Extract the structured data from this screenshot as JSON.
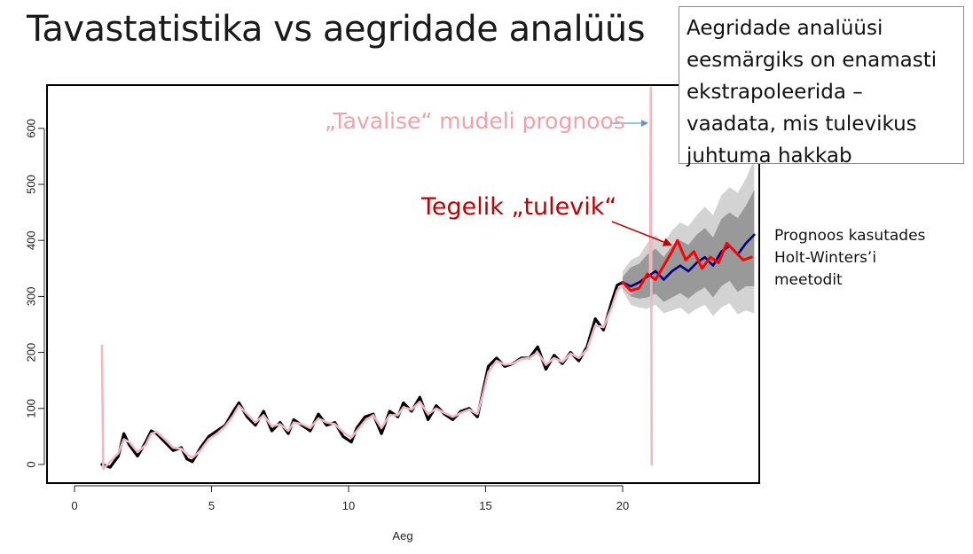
{
  "slide": {
    "title": "Tavastatistika vs aegridade analüüs",
    "callout_lines": [
      "Aegridade analüüsi",
      "eesmärgiks on enamasti",
      "ekstrapoleerida –",
      "vaadata, mis tulevikus",
      "juhtuma hakkab"
    ],
    "prediction_label": "„Tavalise“ mudeli prognoos",
    "real_future_label": "Tegelik „tulevik“",
    "hw_label_lines": [
      "Prognoos kasutades",
      "Holt-Winters’i",
      "meetodit"
    ]
  },
  "colors": {
    "observed": "#000000",
    "fitted": "#f4b6c2",
    "actual_future": "#ff0000",
    "forecast": "#000080",
    "band_outer": "#d3d3d3",
    "band_inner": "#999999",
    "real_label": "#c00000",
    "prediction_label": "#f4a0aa",
    "arrow": "#5b9bd5"
  },
  "chart_data": {
    "type": "line",
    "xlabel": "Aeg",
    "ylabel": "",
    "xlim": [
      -1,
      24.8
    ],
    "ylim": [
      -30,
      680
    ],
    "x_ticks": [
      0,
      5,
      10,
      15,
      20
    ],
    "y_ticks": [
      0,
      100,
      200,
      300,
      400,
      500,
      600
    ],
    "series": [
      {
        "key": "observed",
        "x": [
          1.0,
          1.3,
          1.6,
          1.8,
          2.0,
          2.3,
          2.6,
          2.8,
          3.0,
          3.3,
          3.6,
          3.9,
          4.1,
          4.3,
          4.6,
          4.9,
          5.2,
          5.5,
          5.8,
          6.0,
          6.3,
          6.6,
          6.9,
          7.2,
          7.5,
          7.8,
          8.0,
          8.3,
          8.6,
          8.9,
          9.2,
          9.5,
          9.8,
          10.1,
          10.3,
          10.6,
          10.9,
          11.2,
          11.5,
          11.8,
          12.0,
          12.3,
          12.6,
          12.9,
          13.2,
          13.5,
          13.8,
          14.1,
          14.4,
          14.7,
          14.9,
          15.1,
          15.4,
          15.7,
          16.0,
          16.3,
          16.6,
          16.9,
          17.2,
          17.5,
          17.8,
          18.1,
          18.4,
          18.7,
          19.0,
          19.3,
          19.6,
          19.8,
          20.0
        ],
        "y": [
          0,
          -5,
          15,
          55,
          35,
          15,
          40,
          60,
          55,
          40,
          25,
          30,
          10,
          5,
          30,
          50,
          60,
          70,
          95,
          110,
          85,
          70,
          95,
          60,
          75,
          55,
          80,
          70,
          60,
          90,
          70,
          75,
          50,
          40,
          65,
          85,
          90,
          55,
          95,
          85,
          110,
          95,
          120,
          80,
          105,
          90,
          80,
          95,
          100,
          85,
          130,
          175,
          190,
          175,
          180,
          190,
          190,
          210,
          170,
          195,
          180,
          200,
          185,
          210,
          260,
          240,
          290,
          320,
          325
        ]
      },
      {
        "key": "fitted",
        "x": [
          1.0,
          1.05,
          1.3,
          1.6,
          1.8,
          2.0,
          2.3,
          2.6,
          2.8,
          3.0,
          3.3,
          3.6,
          3.9,
          4.1,
          4.3,
          4.6,
          4.9,
          5.2,
          5.5,
          5.8,
          6.0,
          6.3,
          6.6,
          6.9,
          7.2,
          7.5,
          7.8,
          8.0,
          8.3,
          8.6,
          8.9,
          9.2,
          9.5,
          9.8,
          10.1,
          10.3,
          10.6,
          10.9,
          11.2,
          11.5,
          11.8,
          12.0,
          12.3,
          12.6,
          12.9,
          13.2,
          13.5,
          13.8,
          14.1,
          14.4,
          14.7,
          14.9,
          15.1,
          15.4,
          15.7,
          16.0,
          16.3,
          16.6,
          16.9,
          17.2,
          17.5,
          17.8,
          18.1,
          18.4,
          18.7,
          19.0,
          19.3,
          19.6,
          19.8,
          20.0,
          20.3,
          20.5,
          20.7,
          20.9,
          21.0,
          21.03,
          21.06
        ],
        "y": [
          212,
          -8,
          5,
          20,
          45,
          40,
          22,
          35,
          55,
          58,
          45,
          30,
          28,
          18,
          12,
          25,
          45,
          55,
          68,
          88,
          105,
          90,
          75,
          88,
          68,
          72,
          60,
          75,
          72,
          65,
          82,
          75,
          72,
          58,
          48,
          60,
          78,
          88,
          65,
          88,
          88,
          102,
          98,
          112,
          90,
          100,
          92,
          85,
          92,
          98,
          90,
          125,
          165,
          185,
          178,
          180,
          188,
          190,
          200,
          178,
          190,
          183,
          198,
          190,
          205,
          248,
          245,
          280,
          310,
          320,
          305,
          312,
          325,
          335,
          335,
          672,
          0
        ]
      },
      {
        "key": "actual_future",
        "x": [
          20.0,
          20.3,
          20.6,
          20.9,
          21.2,
          21.5,
          21.8,
          22.0,
          22.3,
          22.6,
          22.9,
          23.2,
          23.5,
          23.8,
          24.1,
          24.4,
          24.7
        ],
        "y": [
          325,
          310,
          315,
          340,
          330,
          355,
          380,
          400,
          365,
          380,
          350,
          370,
          360,
          395,
          380,
          365,
          370
        ]
      },
      {
        "key": "forecast",
        "x": [
          20.0,
          20.3,
          20.6,
          20.9,
          21.2,
          21.5,
          21.8,
          22.1,
          22.4,
          22.7,
          23.0,
          23.3,
          23.6,
          23.9,
          24.2,
          24.5,
          24.8
        ],
        "y": [
          325,
          318,
          325,
          335,
          345,
          330,
          345,
          355,
          345,
          360,
          370,
          355,
          380,
          390,
          375,
          395,
          410
        ]
      }
    ],
    "band_x": [
      20.0,
      20.3,
      20.6,
      20.9,
      21.2,
      21.5,
      21.8,
      22.1,
      22.4,
      22.7,
      23.0,
      23.3,
      23.6,
      23.9,
      24.2,
      24.5,
      24.8
    ],
    "band_outer_upper": [
      345,
      365,
      372,
      395,
      410,
      395,
      418,
      432,
      425,
      445,
      460,
      445,
      480,
      495,
      485,
      510,
      545
    ],
    "band_outer_lower": [
      310,
      285,
      280,
      278,
      285,
      270,
      275,
      280,
      268,
      278,
      285,
      265,
      280,
      288,
      268,
      275,
      270
    ],
    "band_inner_upper": [
      335,
      352,
      358,
      375,
      385,
      370,
      390,
      400,
      392,
      410,
      422,
      405,
      438,
      450,
      440,
      462,
      490
    ],
    "band_inner_lower": [
      315,
      300,
      296,
      298,
      305,
      290,
      298,
      306,
      296,
      308,
      316,
      298,
      318,
      328,
      308,
      318,
      318
    ]
  }
}
